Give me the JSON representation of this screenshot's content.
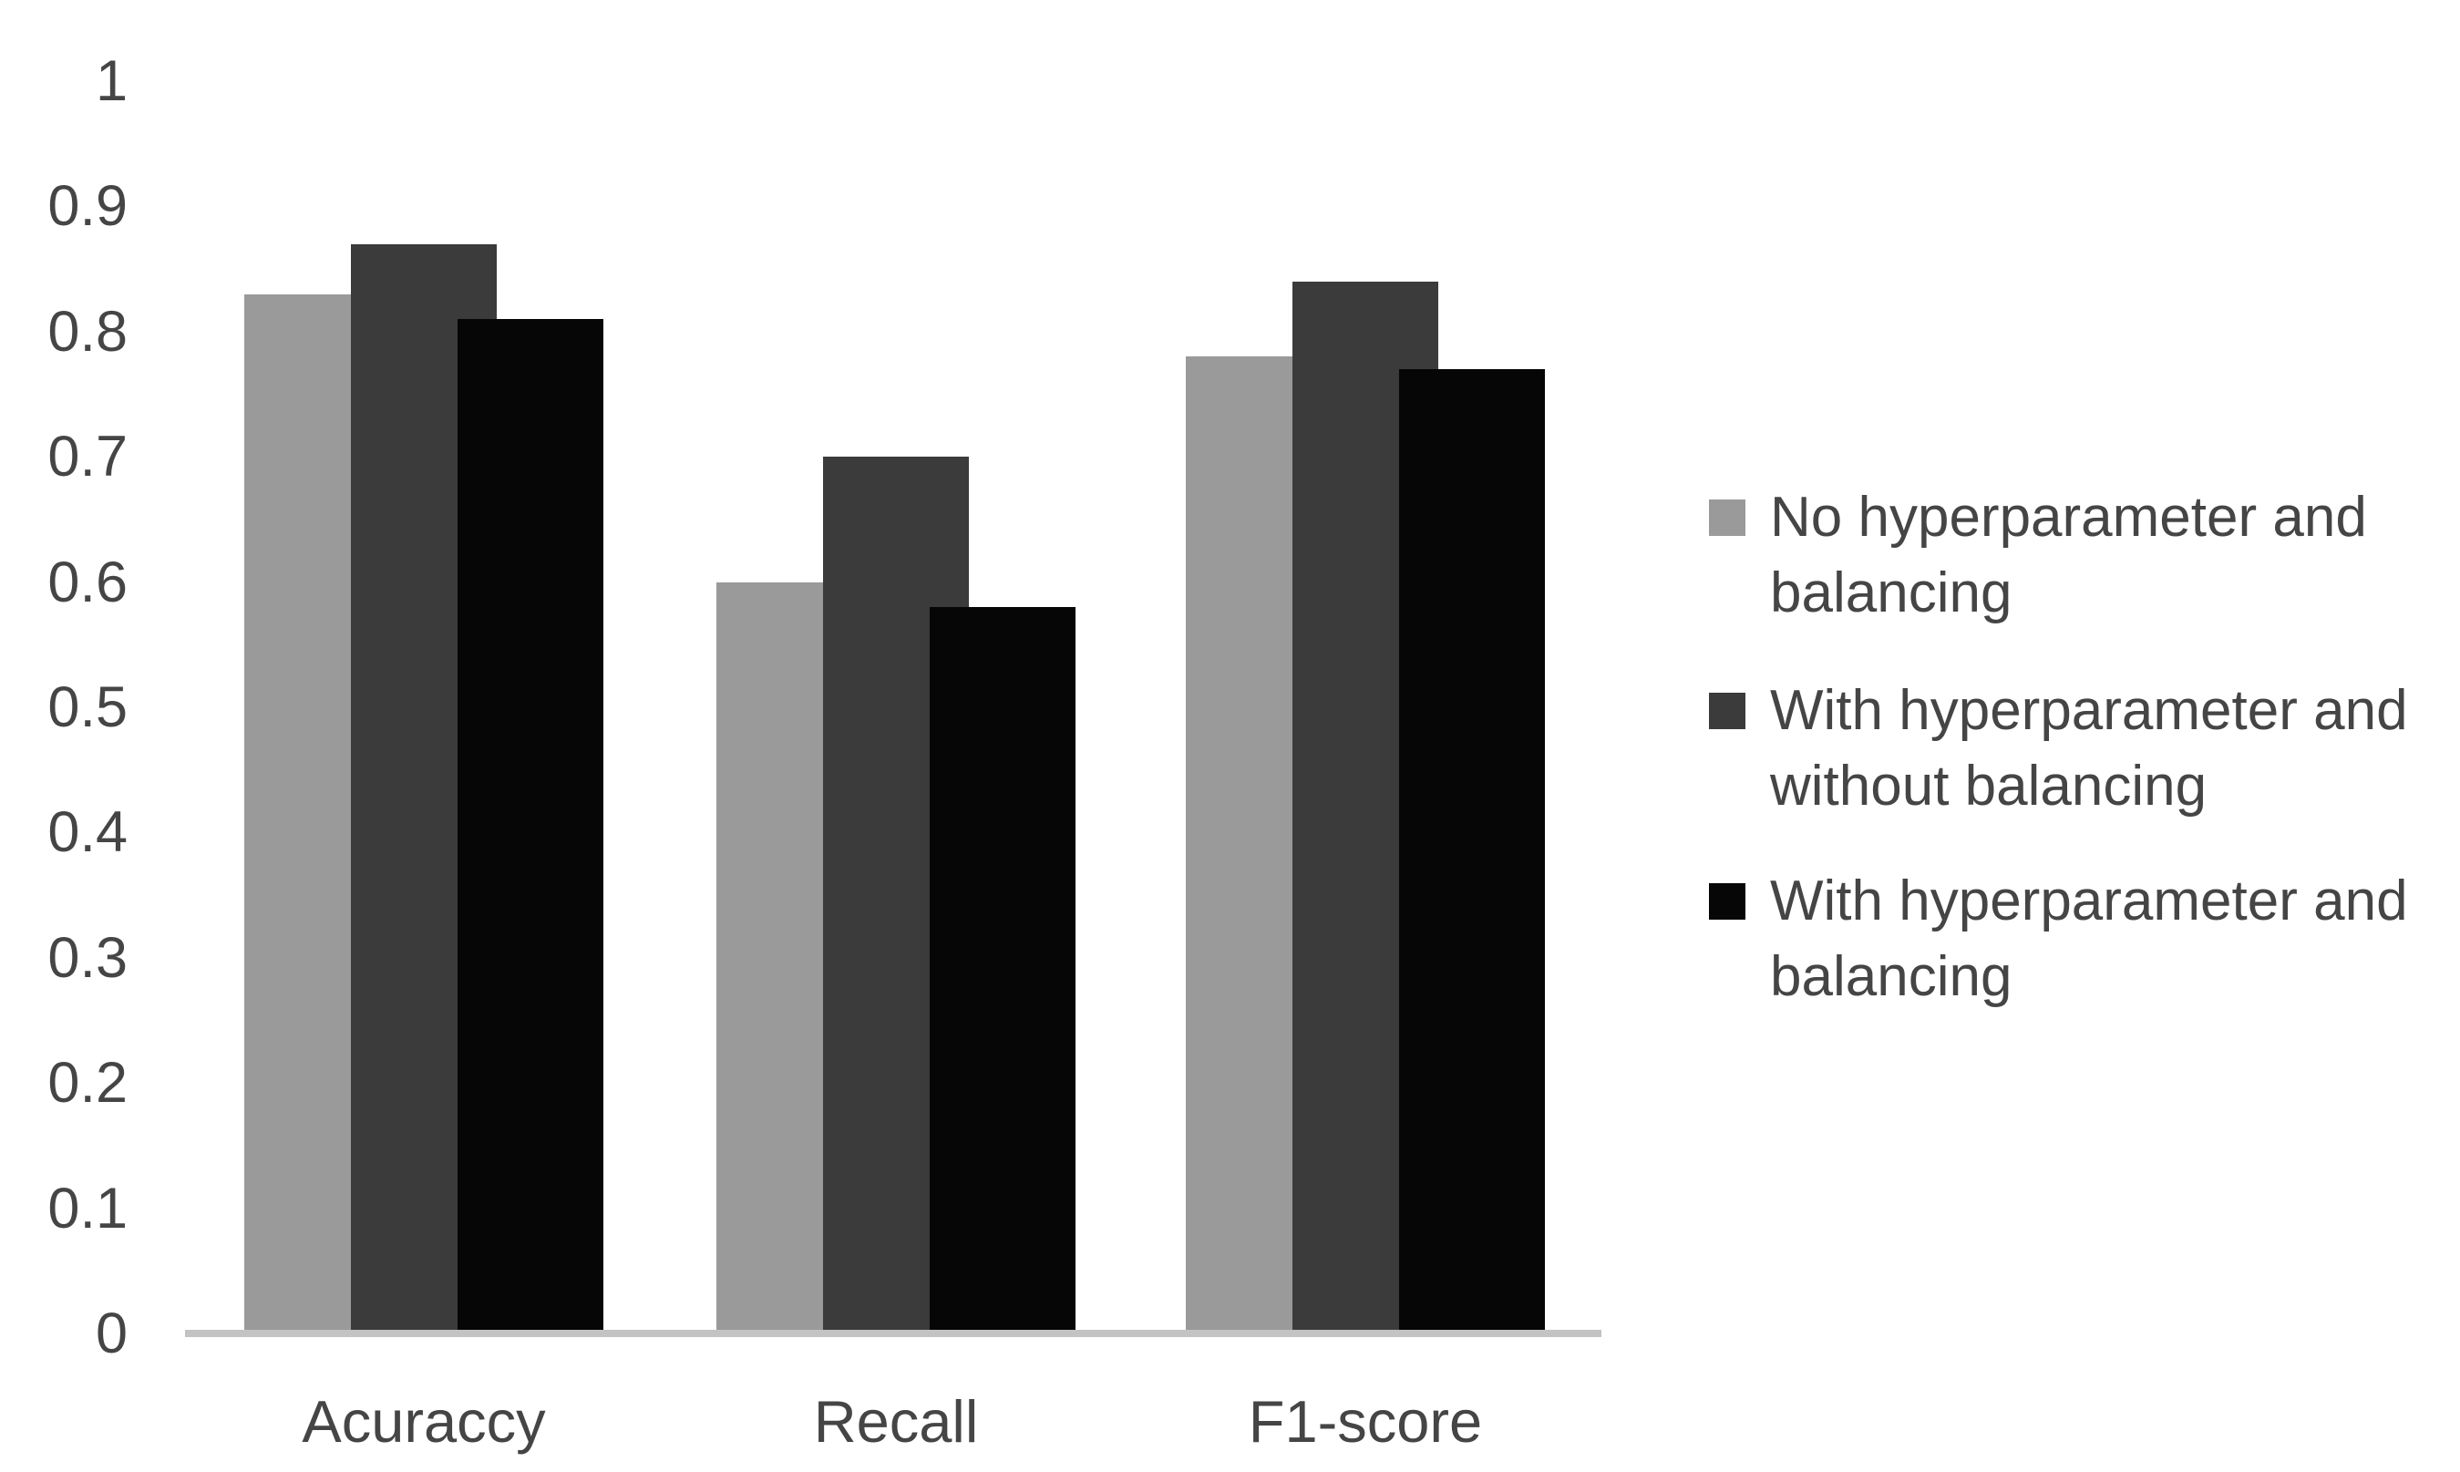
{
  "chart_data": {
    "type": "bar",
    "title": "",
    "xlabel": "",
    "ylabel": "",
    "categories": [
      "Acuraccy",
      "Recall",
      "F1-score"
    ],
    "series": [
      {
        "name": "No hyperparameter and balancing",
        "label_lines": [
          "No hyperparameter and",
          "balancing"
        ],
        "color": "#9a9a9a",
        "values": [
          0.83,
          0.6,
          0.78
        ]
      },
      {
        "name": "With hyperparameter and without balancing",
        "label_lines": [
          "With hyperparameter and",
          "without balancing"
        ],
        "color": "#3b3b3b",
        "values": [
          0.87,
          0.7,
          0.84
        ]
      },
      {
        "name": "With hyperparameter and balancing",
        "label_lines": [
          "With hyperparameter and",
          "balancing"
        ],
        "color": "#060606",
        "values": [
          0.81,
          0.58,
          0.77
        ]
      }
    ],
    "y_axis": {
      "min": 0,
      "max": 1,
      "ticks": [
        {
          "label": "1",
          "value": 1.0
        },
        {
          "label": "0.9",
          "value": 0.9
        },
        {
          "label": "0.8",
          "value": 0.8
        },
        {
          "label": "0.7",
          "value": 0.7
        },
        {
          "label": "0.6",
          "value": 0.6
        },
        {
          "label": "0.5",
          "value": 0.5
        },
        {
          "label": "0.4",
          "value": 0.4
        },
        {
          "label": "0.3",
          "value": 0.3
        },
        {
          "label": "0.2",
          "value": 0.2
        },
        {
          "label": "0.1",
          "value": 0.1
        },
        {
          "label": "0",
          "value": 0.0
        }
      ]
    },
    "grid": false,
    "legend_position": "right",
    "colors": {
      "axis_line": "#c3c3c3",
      "text": "#454545",
      "background": "#ffffff"
    }
  }
}
